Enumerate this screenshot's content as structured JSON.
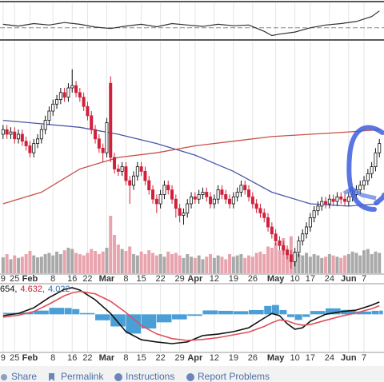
{
  "chart_data": {
    "type": "candlestick",
    "xlim": [
      -0.8,
      99.2
    ],
    "xticks": [
      {
        "value": 0,
        "label": "9"
      },
      {
        "value": 3,
        "label": "25"
      },
      {
        "value": 7,
        "label": "Feb"
      },
      {
        "value": 13,
        "label": "8"
      },
      {
        "value": 18,
        "label": "16"
      },
      {
        "value": 22,
        "label": "22"
      },
      {
        "value": 27,
        "label": "Mar"
      },
      {
        "value": 32,
        "label": "8"
      },
      {
        "value": 36,
        "label": "15"
      },
      {
        "value": 41,
        "label": "22"
      },
      {
        "value": 46,
        "label": "29"
      },
      {
        "value": 50,
        "label": "Apr"
      },
      {
        "value": 55,
        "label": "12"
      },
      {
        "value": 60,
        "label": "19"
      },
      {
        "value": 65,
        "label": "26"
      },
      {
        "value": 71,
        "label": "May"
      },
      {
        "value": 76,
        "label": "10"
      },
      {
        "value": 80,
        "label": "17"
      },
      {
        "value": 85,
        "label": "24"
      },
      {
        "value": 90,
        "label": "Jun"
      },
      {
        "value": 94,
        "label": "7"
      }
    ],
    "ylim": [
      0,
      100
    ],
    "up_color": "#111111",
    "down_color": "#d0203a",
    "open": [
      60,
      62,
      60,
      61,
      58,
      60,
      57,
      55,
      52,
      56,
      58,
      62,
      66,
      70,
      73,
      75,
      78,
      76,
      80,
      81,
      78,
      76,
      72,
      68,
      62,
      58,
      54,
      52,
      82,
      50,
      45,
      44,
      46,
      40,
      38,
      42,
      46,
      44,
      40,
      36,
      32,
      30,
      34,
      38,
      36,
      32,
      28,
      25,
      26,
      30,
      33,
      32,
      34,
      35,
      33,
      30,
      32,
      36,
      34,
      32,
      30,
      33,
      35,
      38,
      36,
      33,
      30,
      28,
      26,
      24,
      20,
      17,
      14,
      12,
      10,
      8,
      5,
      9,
      14,
      17,
      20,
      24,
      27,
      29,
      31,
      30,
      32,
      31,
      33,
      32,
      31,
      33,
      34,
      36,
      38,
      40,
      43,
      46,
      52
    ],
    "high": [
      64,
      64,
      63,
      63,
      62,
      62,
      59,
      57,
      58,
      60,
      64,
      68,
      72,
      75,
      77,
      80,
      80,
      82,
      88,
      83,
      80,
      78,
      74,
      70,
      64,
      60,
      56,
      67,
      85,
      52,
      47,
      48,
      48,
      42,
      44,
      48,
      48,
      46,
      42,
      38,
      34,
      36,
      40,
      40,
      38,
      34,
      30,
      28,
      32,
      35,
      35,
      36,
      37,
      37,
      35,
      34,
      38,
      38,
      36,
      34,
      35,
      37,
      40,
      40,
      38,
      35,
      32,
      30,
      28,
      26,
      22,
      19,
      16,
      14,
      12,
      10,
      11,
      16,
      19,
      22,
      26,
      29,
      31,
      33,
      33,
      34,
      34,
      35,
      35,
      34,
      35,
      36,
      38,
      40,
      42,
      45,
      48,
      54,
      58
    ],
    "low": [
      58,
      58,
      58,
      56,
      56,
      55,
      53,
      50,
      50,
      54,
      56,
      60,
      64,
      68,
      71,
      73,
      74,
      74,
      78,
      76,
      74,
      70,
      66,
      60,
      56,
      52,
      48,
      50,
      48,
      43,
      42,
      42,
      38,
      30,
      36,
      40,
      42,
      38,
      34,
      30,
      26,
      28,
      32,
      34,
      30,
      24,
      22,
      21,
      24,
      28,
      30,
      30,
      32,
      31,
      28,
      28,
      30,
      32,
      30,
      28,
      28,
      31,
      33,
      34,
      31,
      28,
      26,
      24,
      22,
      18,
      15,
      12,
      10,
      8,
      6,
      2,
      3,
      7,
      12,
      15,
      18,
      22,
      25,
      27,
      28,
      28,
      29,
      29,
      30,
      29,
      29,
      31,
      32,
      34,
      36,
      38,
      41,
      44,
      50
    ],
    "close": [
      62,
      60,
      61,
      58,
      60,
      57,
      55,
      52,
      56,
      58,
      62,
      66,
      70,
      73,
      75,
      78,
      76,
      80,
      81,
      78,
      76,
      72,
      68,
      62,
      58,
      54,
      52,
      65,
      50,
      45,
      44,
      46,
      40,
      38,
      42,
      46,
      44,
      40,
      36,
      32,
      30,
      34,
      38,
      36,
      32,
      28,
      25,
      26,
      30,
      33,
      32,
      34,
      35,
      33,
      30,
      32,
      36,
      34,
      32,
      30,
      33,
      35,
      38,
      36,
      33,
      30,
      28,
      26,
      24,
      20,
      17,
      14,
      12,
      10,
      8,
      5,
      9,
      14,
      17,
      20,
      24,
      27,
      29,
      31,
      30,
      32,
      31,
      33,
      32,
      31,
      33,
      34,
      36,
      38,
      40,
      43,
      46,
      52,
      56
    ],
    "overlays": [
      {
        "color": "#4a55a8",
        "x": [
          0,
          10,
          20,
          30,
          40,
          50,
          60,
          70,
          80,
          90,
          98
        ],
        "values": [
          66,
          64.5,
          63,
          60,
          56,
          51,
          44,
          35,
          30,
          29,
          30
        ]
      },
      {
        "color": "#c8504a",
        "x": [
          0,
          10,
          20,
          30,
          40,
          50,
          60,
          70,
          80,
          90,
          98
        ],
        "values": [
          30,
          35,
          45,
          50,
          52,
          55,
          57,
          59,
          60,
          61,
          62
        ]
      }
    ],
    "volume": {
      "ylim": [
        0,
        100
      ],
      "up_color": "#a9a9a9",
      "down_color": "#e9a3ad",
      "values": [
        25,
        30,
        22,
        28,
        24,
        26,
        30,
        35,
        28,
        25,
        26,
        30,
        32,
        28,
        34,
        30,
        36,
        40,
        38,
        32,
        30,
        28,
        32,
        38,
        35,
        30,
        34,
        40,
        90,
        60,
        45,
        38,
        35,
        42,
        30,
        28,
        34,
        30,
        36,
        32,
        28,
        30,
        26,
        34,
        30,
        32,
        28,
        24,
        30,
        26,
        24,
        28,
        22,
        26,
        30,
        24,
        28,
        26,
        22,
        30,
        26,
        28,
        30,
        24,
        28,
        26,
        32,
        34,
        30,
        42,
        40,
        48,
        36,
        55,
        38,
        58,
        34,
        30,
        28,
        32,
        26,
        30,
        28,
        24,
        26,
        30,
        28,
        26,
        24,
        28,
        30,
        34,
        32,
        28,
        36,
        38,
        30,
        34,
        32
      ]
    },
    "indicator": {
      "ylim": [
        0,
        100
      ],
      "color": "#333333",
      "reference_line": 30,
      "x": [
        0,
        4,
        8,
        12,
        16,
        20,
        24,
        28,
        32,
        36,
        40,
        44,
        48,
        52,
        56,
        60,
        64,
        68,
        70,
        72,
        76,
        80,
        84,
        88,
        92,
        96,
        98
      ],
      "values": [
        40,
        35,
        42,
        38,
        45,
        40,
        32,
        28,
        35,
        40,
        33,
        42,
        38,
        34,
        40,
        36,
        38,
        20,
        8,
        12,
        18,
        30,
        38,
        42,
        48,
        62,
        78
      ]
    },
    "macd": {
      "ylim": [
        -20,
        16
      ],
      "labels": [
        "654,",
        "4.632,",
        "4.022"
      ],
      "label_colors": [
        "#111111",
        "#d0203a",
        "#2f6db5"
      ],
      "x": [
        0,
        4,
        8,
        12,
        16,
        18,
        20,
        24,
        28,
        32,
        36,
        40,
        44,
        48,
        52,
        56,
        60,
        64,
        68,
        70,
        72,
        74,
        76,
        78,
        80,
        84,
        88,
        92,
        96,
        98
      ],
      "series": [
        {
          "color": "#111111",
          "values": [
            -0.7,
            0.5,
            3.5,
            9,
            13.4,
            14.3,
            13,
            7.8,
            0.5,
            -9.3,
            -13.6,
            -14.8,
            -15.7,
            -14.8,
            -11.4,
            -10.6,
            -9.3,
            -7.2,
            -2,
            0.5,
            -0.7,
            -5,
            -8,
            -7.2,
            -3.7,
            0,
            1.4,
            2.3,
            4.9,
            6.6
          ]
        },
        {
          "color": "#e0505a",
          "values": [
            -1.5,
            -0.5,
            1.5,
            5.5,
            10,
            11.5,
            12.3,
            11,
            7,
            1,
            -6,
            -10.5,
            -13,
            -14,
            -13.5,
            -12.5,
            -11,
            -9.5,
            -6.5,
            -4.5,
            -3,
            -3.5,
            -5,
            -5.8,
            -5.5,
            -3.2,
            -1,
            0.8,
            3,
            4.6
          ]
        }
      ],
      "histogram": {
        "color": "#4a9fd6",
        "values": [
          0.8,
          1,
          2,
          3.5,
          3.4,
          2.8,
          0.7,
          -3.2,
          -6.5,
          -10.3,
          -7.6,
          -4.3,
          -2.7,
          -0.8,
          2.1,
          1.9,
          1.7,
          2.3,
          4.5,
          5,
          2.3,
          -1.5,
          -3,
          -1.4,
          1.8,
          3.2,
          2.4,
          1.5,
          1.9,
          2
        ]
      }
    }
  },
  "footer": {
    "links": [
      "Share",
      "Permalink",
      "Instructions",
      "Report Problems"
    ]
  }
}
